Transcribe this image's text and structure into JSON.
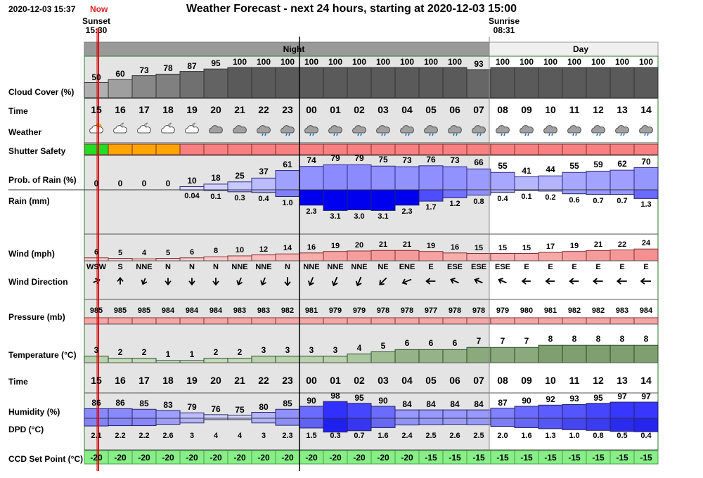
{
  "header": {
    "timestamp": "2020-12-03 15:37",
    "now_label": "Now",
    "title": "Weather Forecast - next 24 hours, starting at 2020-12-03 15:00",
    "sunset_label": "Sunset",
    "sunset_time": "15:30",
    "sunrise_label": "Sunrise",
    "sunrise_time": "08:31"
  },
  "bands": {
    "night": "Night",
    "day": "Day"
  },
  "labels": {
    "cloud": "Cloud Cover (%)",
    "time": "Time",
    "weather": "Weather",
    "shutter": "Shutter Safety",
    "prob_rain": "Prob. of Rain (%)",
    "rain": "Rain (mm)",
    "wind": "Wind (mph)",
    "wind_dir": "Wind Direction",
    "pressure": "Pressure (mb)",
    "temperature": "Temperature (°C)",
    "time2": "Time",
    "humidity": "Humidity (%)",
    "dpd": "DPD (°C)",
    "ccd": "CCD Set Point (°C)"
  },
  "hours": [
    "15",
    "16",
    "17",
    "18",
    "19",
    "20",
    "21",
    "22",
    "23",
    "00",
    "01",
    "02",
    "03",
    "04",
    "05",
    "06",
    "07",
    "08",
    "09",
    "10",
    "11",
    "12",
    "13",
    "14"
  ],
  "cloud": [
    50,
    60,
    73,
    78,
    87,
    95,
    100,
    100,
    100,
    100,
    100,
    100,
    100,
    100,
    100,
    100,
    93,
    100,
    100,
    100,
    100,
    100,
    100,
    100
  ],
  "weather_icons": [
    "partly-cloudy-day-icon",
    "partly-cloudy-night-icon",
    "partly-cloudy-night-icon",
    "partly-cloudy-night-icon",
    "partly-cloudy-night-icon",
    "cloud-icon",
    "cloud-icon",
    "rain-cloud-icon",
    "rain-cloud-icon",
    "rain-cloud-icon",
    "rain-cloud-icon",
    "rain-cloud-icon",
    "rain-cloud-icon",
    "rain-cloud-icon",
    "rain-cloud-icon",
    "rain-cloud-icon",
    "rain-cloud-icon",
    "rain-cloud-icon",
    "rain-cloud-icon",
    "rain-cloud-icon",
    "rain-cloud-icon",
    "rain-cloud-icon",
    "rain-cloud-icon",
    "rain-cloud-icon"
  ],
  "shutter": [
    "safe",
    "caution",
    "caution",
    "caution",
    "unsafe",
    "unsafe",
    "unsafe",
    "unsafe",
    "unsafe",
    "unsafe",
    "unsafe",
    "unsafe",
    "unsafe",
    "unsafe",
    "unsafe",
    "unsafe",
    "unsafe",
    "unsafe",
    "unsafe",
    "unsafe",
    "unsafe",
    "unsafe",
    "unsafe",
    "unsafe"
  ],
  "shutter_colors": {
    "safe": "#22dd22",
    "caution": "#ffa500",
    "unsafe": "#f88080"
  },
  "prob_rain": [
    0,
    0,
    0,
    0,
    10,
    18,
    25,
    37,
    61,
    74,
    79,
    79,
    75,
    73,
    76,
    73,
    66,
    55,
    41,
    44,
    55,
    59,
    62,
    70
  ],
  "rain": [
    "",
    "",
    "",
    "",
    "0.04",
    "0.1",
    "0.3",
    "0.4",
    "1.0",
    "2.3",
    "3.1",
    "3.0",
    "3.1",
    "2.3",
    "1.7",
    "1.2",
    "0.8",
    "0.4",
    "0.1",
    "0.2",
    "0.6",
    "0.7",
    "0.7",
    "1.3"
  ],
  "wind": [
    6,
    5,
    4,
    5,
    6,
    8,
    10,
    12,
    14,
    16,
    19,
    20,
    21,
    21,
    19,
    16,
    15,
    15,
    15,
    17,
    19,
    21,
    22,
    24
  ],
  "wind_dir": [
    "WSW",
    "S",
    "NNE",
    "N",
    "N",
    "N",
    "NNE",
    "NNE",
    "N",
    "NNE",
    "NNE",
    "NNE",
    "NE",
    "ENE",
    "E",
    "ESE",
    "ESE",
    "ESE",
    "E",
    "E",
    "E",
    "E",
    "E",
    "E"
  ],
  "pressure": [
    985,
    985,
    985,
    984,
    984,
    984,
    983,
    983,
    982,
    981,
    979,
    979,
    978,
    978,
    977,
    978,
    978,
    979,
    980,
    981,
    982,
    982,
    983,
    984
  ],
  "temperature": [
    3,
    2,
    2,
    1,
    1,
    2,
    2,
    3,
    3,
    3,
    3,
    4,
    5,
    6,
    6,
    6,
    7,
    7,
    7,
    8,
    8,
    8,
    8,
    8
  ],
  "humidity": [
    86,
    86,
    85,
    83,
    79,
    76,
    75,
    80,
    85,
    90,
    98,
    95,
    90,
    84,
    84,
    84,
    84,
    87,
    90,
    92,
    93,
    95,
    97,
    97
  ],
  "dpd": [
    "2.1",
    "2.2",
    "2.2",
    "2.6",
    "3",
    "4",
    "4",
    "3",
    "2.3",
    "1.5",
    "0.3",
    "0.7",
    "1.6",
    "2.4",
    "2.5",
    "2.6",
    "2.5",
    "2.0",
    "1.6",
    "1.3",
    "1.0",
    "0.8",
    "0.5",
    "0.4"
  ],
  "ccd": [
    "-20",
    "-20",
    "-20",
    "-20",
    "-20",
    "-20",
    "-20",
    "-20",
    "-20",
    "-20",
    "-20",
    "-20",
    "-20",
    "-20",
    "-15",
    "-15",
    "-15",
    "-15",
    "-15",
    "-15",
    "-15",
    "-15",
    "-15",
    "-15"
  ],
  "colors": {
    "night_band": "#999999",
    "day_band": "#f0f0f0",
    "night_bg": "#e4e4e4",
    "now_line": "#dd0000",
    "rain_blue": "#0000ee",
    "wind_pink": "#f4a0a0",
    "pressure_pink": "#f4a6a6",
    "ccd_green": "#88ee88"
  }
}
